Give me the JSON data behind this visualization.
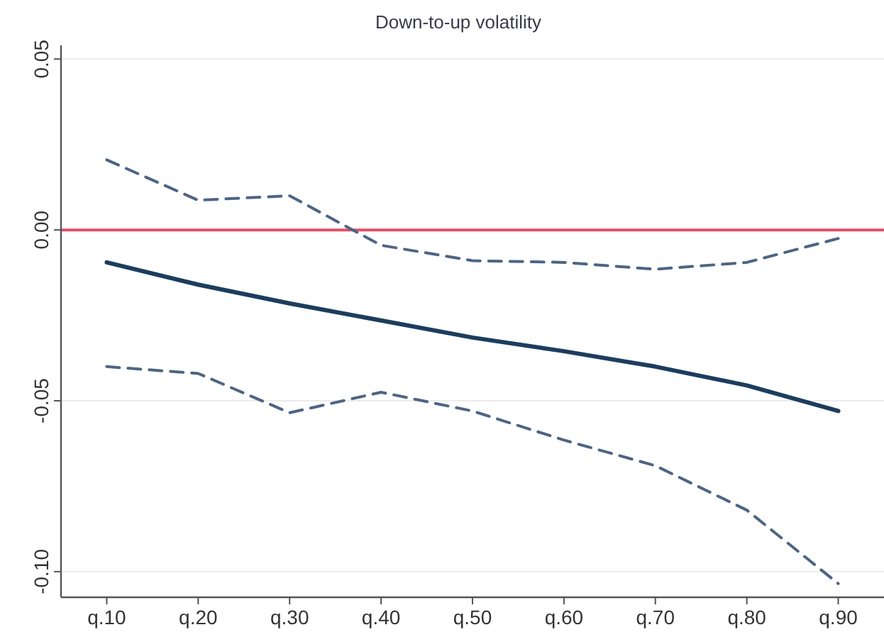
{
  "chart_data": {
    "type": "line",
    "title": "Down-to-up volatility",
    "categories": [
      "q.10",
      "q.20",
      "q.30",
      "q.40",
      "q.50",
      "q.60",
      "q.70",
      "q.80",
      "q.90"
    ],
    "series": [
      {
        "color": "#1c3d5e",
        "line_style": "solid",
        "values": [
          -0.0095,
          -0.016,
          -0.0215,
          -0.0265,
          -0.0315,
          -0.0355,
          -0.04,
          -0.0455,
          -0.053
        ]
      },
      {
        "color": "#4d6584",
        "line_style": "dashed",
        "values": [
          0.0205,
          0.0087,
          0.01,
          -0.0045,
          -0.009,
          -0.0095,
          -0.0115,
          -0.0095,
          -0.0025
        ]
      },
      {
        "color": "#4d6584",
        "line_style": "dashed",
        "values": [
          -0.04,
          -0.042,
          -0.0535,
          -0.0475,
          -0.053,
          -0.0615,
          -0.069,
          -0.082,
          -0.1035
        ]
      }
    ],
    "ylim": [
      -0.1075,
      0.054
    ],
    "yticks": [
      {
        "value": -0.1,
        "label": "-0.10"
      },
      {
        "value": -0.05,
        "label": "-0.05"
      },
      {
        "value": 0,
        "label": "0.00"
      },
      {
        "value": 0.05,
        "label": "0.05"
      }
    ],
    "ref_lines": [
      {
        "axis": "y",
        "value": 0,
        "color": "#e0506a"
      }
    ],
    "grid": "y"
  }
}
